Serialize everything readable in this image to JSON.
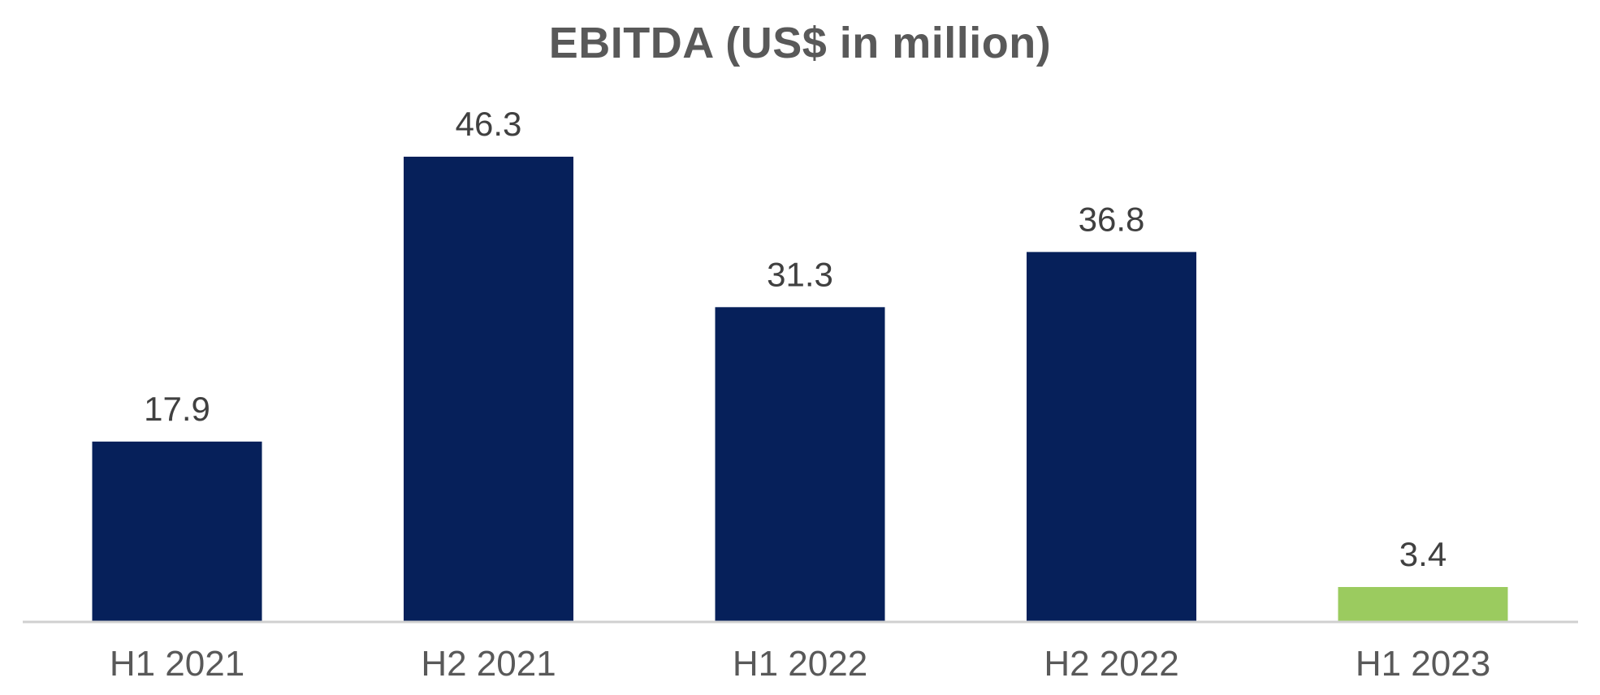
{
  "chart_data": {
    "type": "bar",
    "title": "EBITDA (US$ in million)",
    "xlabel": "",
    "ylabel": "",
    "categories": [
      "H1 2021",
      "H2 2021",
      "H1 2022",
      "H2 2022",
      "H1 2023"
    ],
    "values": [
      17.9,
      46.3,
      31.3,
      36.8,
      3.4
    ],
    "data_labels": [
      "17.9",
      "46.3",
      "31.3",
      "36.8",
      "3.4"
    ],
    "bar_colors": [
      "#06205a",
      "#06205a",
      "#06205a",
      "#06205a",
      "#9bcb5f"
    ],
    "ylim": [
      0,
      46.3
    ],
    "grid": false,
    "legend": "none"
  },
  "colors": {
    "axis_line": "#d0d0d0",
    "title_text": "#595959",
    "label_text": "#404040",
    "tick_text": "#595959"
  }
}
